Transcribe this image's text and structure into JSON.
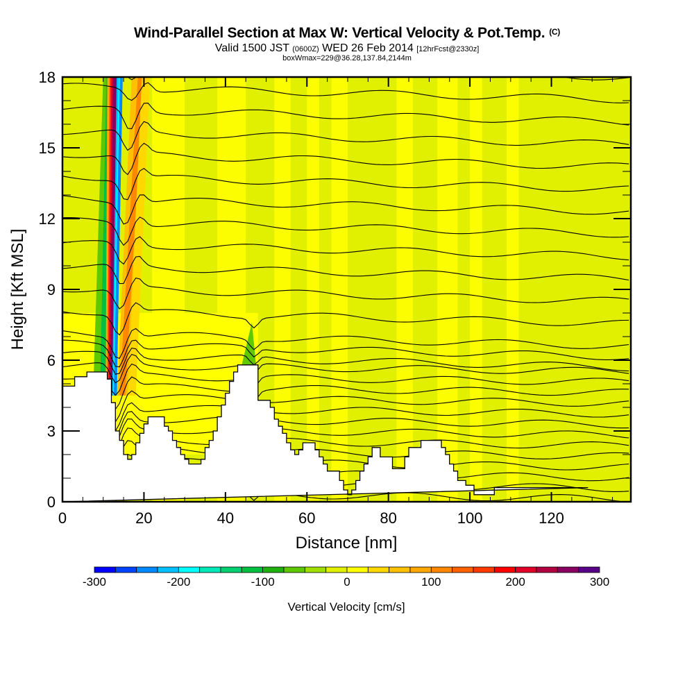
{
  "chart_data": {
    "type": "heatmap",
    "title": "Wind-Parallel Section at Max W: Vertical Velocity & Pot.Temp.",
    "title_mark": "(C)",
    "subtitle_main_a": "Valid 1500 JST",
    "subtitle_utc": "(0600Z)",
    "subtitle_main_b": "WED 26 Feb 2014",
    "subtitle_fcst": "[12hrFcst@2330z]",
    "subtitle2": "boxWmax=229@36.28,137.84,2144m",
    "xlabel": "Distance [nm]",
    "ylabel": "Height [Kft MSL]",
    "xlim": [
      0,
      139.5
    ],
    "ylim": [
      0,
      18
    ],
    "x_ticks": [
      "0",
      "20",
      "40",
      "60",
      "80",
      "100",
      "120"
    ],
    "x_tick_values": [
      0,
      20,
      40,
      60,
      80,
      100,
      120
    ],
    "y_ticks": [
      "0",
      "3",
      "6",
      "9",
      "12",
      "15",
      "18"
    ],
    "y_tick_values": [
      0,
      3,
      6,
      9,
      12,
      15,
      18
    ],
    "colorbar": {
      "label": "Vertical Velocity [cm/s]",
      "tick_labels": [
        "-300",
        "-200",
        "-100",
        "0",
        "100",
        "200",
        "300"
      ],
      "tick_values": [
        -300,
        -200,
        -100,
        0,
        100,
        200,
        300
      ],
      "min": -300,
      "max": 300,
      "colors": [
        "#0000ff",
        "#0044ff",
        "#0088ff",
        "#00c0ff",
        "#00ffff",
        "#00e8b8",
        "#00d070",
        "#00c040",
        "#20b010",
        "#60c800",
        "#a0e000",
        "#e0f000",
        "#ffff00",
        "#ffd800",
        "#ffc000",
        "#ffa800",
        "#ff8800",
        "#ff6000",
        "#ff3800",
        "#ff0000",
        "#e00028",
        "#b00040",
        "#880060",
        "#580088"
      ]
    },
    "terrain_kft": {
      "x": [
        0,
        3,
        3,
        6,
        6,
        8,
        8,
        9,
        9,
        11,
        11,
        12,
        12,
        13,
        13,
        14,
        14,
        15,
        15,
        16,
        16,
        17,
        17,
        18,
        18,
        19,
        19,
        20,
        20,
        21,
        21,
        22,
        22,
        23,
        23,
        25,
        25,
        26,
        26,
        27,
        27,
        28,
        28,
        29,
        29,
        30,
        30,
        31,
        31,
        34,
        34,
        35,
        35,
        36,
        36,
        37,
        37,
        38,
        38,
        39,
        39,
        40,
        40,
        41,
        41,
        42,
        42,
        43,
        43,
        44,
        44,
        45,
        45,
        48,
        48,
        49,
        49,
        51,
        51,
        52,
        52,
        53,
        53,
        54,
        54,
        55,
        55,
        56,
        56,
        57,
        57,
        58,
        58,
        59,
        59,
        60,
        60,
        62,
        62,
        63,
        63,
        64,
        64,
        65,
        65,
        68,
        68,
        69,
        69,
        70,
        70,
        71,
        71,
        72,
        72,
        73,
        73,
        74,
        74,
        75,
        75,
        76,
        76,
        77,
        77,
        78,
        78,
        81,
        81,
        82,
        82,
        84,
        84,
        85,
        85,
        87,
        87,
        88,
        88,
        91,
        91,
        93,
        93,
        94,
        94,
        95,
        95,
        96,
        96,
        97,
        97,
        98,
        98,
        99,
        99,
        100,
        100,
        101,
        101,
        104,
        104,
        106,
        106,
        129,
        129,
        139.5
      ],
      "y": [
        4.9,
        4.9,
        5.3,
        5.3,
        5.5,
        5.5,
        5.5,
        5.5,
        5.5,
        5.5,
        5.2,
        5.2,
        4.2,
        4.2,
        3.0,
        3.0,
        2.6,
        2.6,
        2.0,
        2.0,
        1.8,
        1.8,
        2.0,
        2.0,
        2.5,
        2.5,
        2.9,
        2.9,
        3.3,
        3.3,
        3.6,
        3.6,
        3.6,
        3.6,
        3.6,
        3.6,
        3.2,
        3.2,
        3.0,
        3.0,
        2.6,
        2.6,
        2.3,
        2.3,
        2.0,
        2.0,
        1.8,
        1.8,
        1.6,
        1.6,
        1.8,
        1.8,
        2.3,
        2.3,
        2.6,
        2.6,
        3.0,
        3.0,
        3.6,
        3.6,
        4.1,
        4.1,
        4.6,
        4.6,
        5.1,
        5.1,
        5.5,
        5.5,
        5.8,
        5.8,
        5.8,
        5.8,
        5.8,
        5.8,
        4.3,
        4.3,
        4.3,
        4.3,
        4.0,
        4.0,
        3.5,
        3.5,
        3.2,
        3.2,
        2.9,
        2.9,
        2.5,
        2.5,
        2.2,
        2.2,
        2.0,
        2.0,
        2.2,
        2.2,
        2.5,
        2.5,
        2.5,
        2.5,
        2.2,
        2.2,
        1.9,
        1.9,
        1.6,
        1.6,
        1.3,
        1.3,
        0.9,
        0.9,
        0.5,
        0.5,
        0.3,
        0.3,
        0.5,
        0.5,
        0.9,
        0.9,
        1.3,
        1.3,
        1.6,
        1.6,
        1.9,
        1.9,
        2.3,
        2.3,
        2.3,
        2.3,
        1.9,
        1.9,
        1.4,
        1.4,
        1.4,
        1.4,
        1.9,
        1.9,
        2.3,
        2.3,
        2.3,
        2.3,
        2.6,
        2.6,
        2.6,
        2.6,
        2.3,
        2.3,
        2.0,
        2.0,
        1.6,
        1.6,
        1.3,
        1.3,
        0.9,
        0.9,
        0.9,
        0.9,
        0.7,
        0.7,
        0.7,
        0.7,
        0.3,
        0.3,
        0.3,
        0.3,
        0.6,
        0.6
      ]
    },
    "max_w_cm_s": 229
  }
}
